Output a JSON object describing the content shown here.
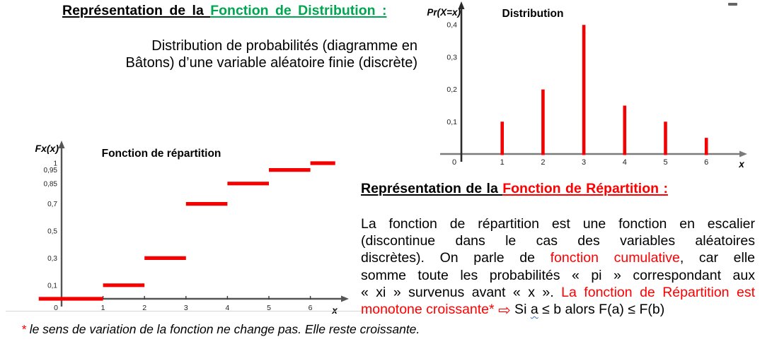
{
  "colors": {
    "green": "#00A650",
    "red": "#FF0000",
    "chart_red": "#F40000",
    "squiggle_blue": "#4472C4"
  },
  "section_distribution": {
    "title_prefix": "Représentation de la ",
    "title_highlight": "Fonction de Distribution :",
    "caption_line1": "Distribution de probabilités (diagramme en",
    "caption_line2": "Bâtons) d’une variable aléatoire finie (discrète)"
  },
  "section_repartition": {
    "title_prefix": "Représentation de la ",
    "title_highlight": "Fonction de Répartition :",
    "para": {
      "line1": "La fonction de répartition est une fonction en escalier",
      "line2": "(discontinue dans le cas des variables aléatoires",
      "line3_black1": "discrètes). On parle de ",
      "line3_red": "fonction cumulative",
      "line3_black2": ", car elle",
      "line4": "somme toute les probabilités « pi » correspondant aux",
      "line5_black": "« xi » survenus avant « x ». ",
      "line5_red": "La fonction de Répartition est",
      "line6_red": "monotone croissante* ",
      "line6_arrow": "⇨",
      "line6_black1": " Si ",
      "line6_a": "a",
      "line6_black2": " ≤ b alors F(a) ≤ F(b)"
    }
  },
  "footnote": {
    "star": "* ",
    "text": "le sens de variation de la fonction ne change pas. Elle reste croissante."
  },
  "chart_data": [
    {
      "id": "distribution",
      "type": "bar",
      "title": "Distribution",
      "ylabel": "Pr(X=x)",
      "xlabel": "x",
      "categories": [
        1,
        2,
        3,
        4,
        5,
        6
      ],
      "values": [
        0.1,
        0.2,
        0.4,
        0.15,
        0.1,
        0.05
      ],
      "yticks": [
        {
          "label": "0,1",
          "value": 0.1
        },
        {
          "label": "0,2",
          "value": 0.2
        },
        {
          "label": "0,3",
          "value": 0.3
        },
        {
          "label": "0,4",
          "value": 0.4
        }
      ],
      "xticks": [
        {
          "label": "0",
          "value": 0
        },
        {
          "label": "1",
          "value": 1
        },
        {
          "label": "2",
          "value": 2
        },
        {
          "label": "3",
          "value": 3
        },
        {
          "label": "4",
          "value": 4
        },
        {
          "label": "5",
          "value": 5
        },
        {
          "label": "6",
          "value": 6
        }
      ],
      "ylim": [
        0,
        0.45
      ],
      "bar_color": "#F40000",
      "axis_color": "#7a7a7a",
      "yaxis_color": "#2b2b2b"
    },
    {
      "id": "repartition",
      "type": "step",
      "title": "Fonction de répartition",
      "ylabel": "Fx(x)",
      "xlabel": "x",
      "steps": [
        {
          "x_from": -0.55,
          "x_to": 1,
          "value": 0
        },
        {
          "x_from": 1,
          "x_to": 2,
          "value": 0.1
        },
        {
          "x_from": 2,
          "x_to": 3,
          "value": 0.3
        },
        {
          "x_from": 3,
          "x_to": 4,
          "value": 0.7
        },
        {
          "x_from": 4,
          "x_to": 5,
          "value": 0.85
        },
        {
          "x_from": 5,
          "x_to": 6,
          "value": 0.95
        },
        {
          "x_from": 6,
          "x_to": 6.6,
          "value": 1.0
        }
      ],
      "yticks": [
        {
          "label": "1",
          "value": 1
        },
        {
          "label": "0,95",
          "value": 0.95
        },
        {
          "label": "0,85",
          "value": 0.85
        },
        {
          "label": "0,7",
          "value": 0.7
        },
        {
          "label": "0,5",
          "value": 0.5
        },
        {
          "label": "0,3",
          "value": 0.3
        },
        {
          "label": "0,1",
          "value": 0.1
        }
      ],
      "xticks": [
        {
          "label": "0",
          "value": 0
        },
        {
          "label": "1",
          "value": 1
        },
        {
          "label": "2",
          "value": 2
        },
        {
          "label": "3",
          "value": 3
        },
        {
          "label": "4",
          "value": 4
        },
        {
          "label": "5",
          "value": 5
        },
        {
          "label": "6",
          "value": 6
        }
      ],
      "ylim": [
        0,
        1.1
      ],
      "line_color": "#F40000",
      "axis_color": "#555555",
      "yaxis_color": "#555555"
    }
  ]
}
